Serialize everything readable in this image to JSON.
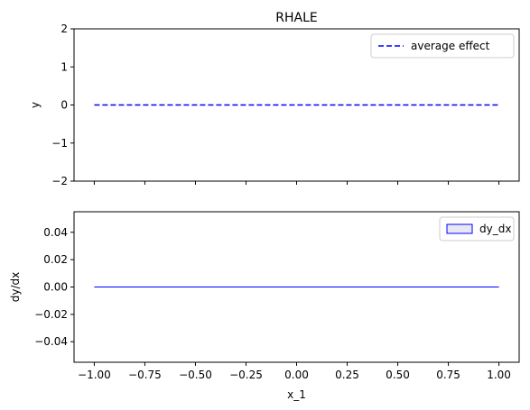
{
  "chart_data": [
    {
      "type": "line",
      "title": "RHALE",
      "xlabel": "",
      "ylabel": "y",
      "xlim": [
        -1.1,
        1.1
      ],
      "ylim": [
        -2,
        2
      ],
      "yticks": [
        2,
        1,
        0,
        -1,
        -2
      ],
      "ytick_labels": [
        "2",
        "1",
        "0",
        "−1",
        "−2"
      ],
      "xticks": [
        -1.0,
        -0.75,
        -0.5,
        -0.25,
        0.0,
        0.25,
        0.5,
        0.75,
        1.0
      ],
      "show_xtick_labels": false,
      "grid": false,
      "legend": "top-right",
      "series": [
        {
          "name": "average effect",
          "x": [
            -1.0,
            1.0
          ],
          "y": [
            0.0,
            0.0
          ],
          "color": "#0000ff",
          "style": "dashed"
        }
      ]
    },
    {
      "type": "line",
      "title": "",
      "xlabel": "x_1",
      "ylabel": "dy/dx",
      "xlim": [
        -1.1,
        1.1
      ],
      "ylim": [
        -0.055,
        0.055
      ],
      "yticks": [
        0.04,
        0.02,
        0.0,
        -0.02,
        -0.04
      ],
      "ytick_labels": [
        "0.04",
        "0.02",
        "0.00",
        "−0.02",
        "−0.04"
      ],
      "xticks": [
        -1.0,
        -0.75,
        -0.5,
        -0.25,
        0.0,
        0.25,
        0.5,
        0.75,
        1.0
      ],
      "xtick_labels": [
        "−1.00",
        "−0.75",
        "−0.50",
        "−0.25",
        "0.00",
        "0.25",
        "0.50",
        "0.75",
        "1.00"
      ],
      "grid": false,
      "legend": "top-right",
      "series": [
        {
          "name": "dy_dx",
          "x": [
            -1.0,
            1.0
          ],
          "y": [
            0.0,
            0.0
          ],
          "color": "#0000ff",
          "style": "solid",
          "legend_marker": "patch"
        }
      ]
    }
  ]
}
